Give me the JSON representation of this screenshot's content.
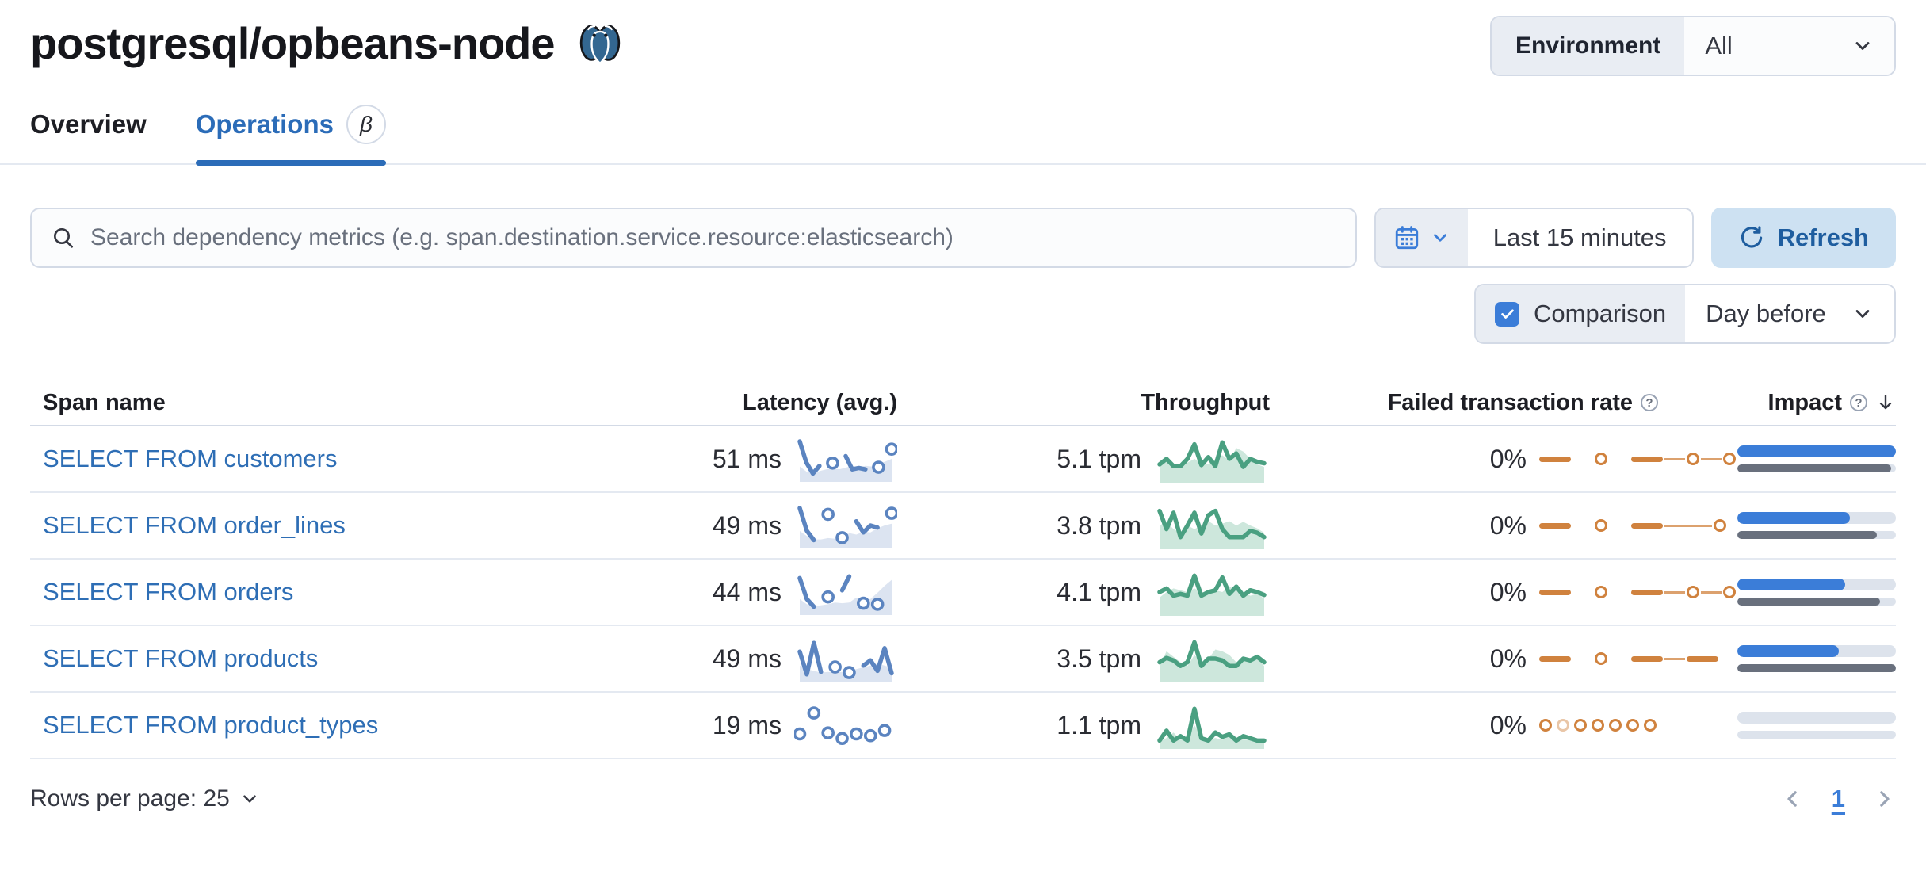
{
  "header": {
    "title": "postgresql/opbeans-node",
    "environment_label": "Environment",
    "environment_value": "All"
  },
  "tabs": [
    {
      "label": "Overview",
      "active": false
    },
    {
      "label": "Operations",
      "active": true,
      "badge": "β"
    }
  ],
  "controls": {
    "search_placeholder": "Search dependency metrics (e.g. span.destination.service.resource:elasticsearch)",
    "time_range": "Last 15 minutes",
    "refresh_label": "Refresh",
    "comparison_label": "Comparison",
    "comparison_checked": true,
    "comparison_value": "Day before"
  },
  "table": {
    "columns": {
      "span_name": "Span name",
      "latency": "Latency (avg.)",
      "throughput": "Throughput",
      "failed_rate": "Failed transaction rate",
      "impact": "Impact"
    },
    "rows": [
      {
        "span_name": "SELECT FROM customers",
        "latency": "51 ms",
        "throughput": "5.1 tpm",
        "failed_rate": "0%",
        "impact": 1.0,
        "impact_prev": 0.97,
        "latency_spark": {
          "current": [
            1.0,
            0.4,
            0.08,
            0.3,
            null,
            0.38,
            null,
            0.58,
            0.2,
            0.24,
            0.2,
            null,
            0.26,
            null,
            0.78
          ],
          "comparison": [
            0.28,
            0.14,
            0.08,
            0.15,
            0.2,
            0.24,
            0.2,
            0.25,
            0.3,
            0.26,
            0.3,
            0.28,
            0.36,
            0.42,
            0.5
          ]
        },
        "throughput_spark": {
          "current": [
            0.35,
            0.5,
            0.3,
            0.3,
            0.5,
            0.9,
            0.33,
            0.55,
            0.3,
            0.95,
            0.5,
            0.65,
            0.28,
            0.5,
            0.42,
            0.38
          ],
          "comparison": [
            0.3,
            0.42,
            0.35,
            0.3,
            0.4,
            0.5,
            0.4,
            0.35,
            0.5,
            0.6,
            0.45,
            0.8,
            0.7,
            0.5,
            0.35,
            0.28
          ]
        },
        "failed_pattern": [
          "dash",
          "gap",
          "dot",
          "gap",
          "dash",
          "link",
          "dot",
          "link",
          "dot"
        ]
      },
      {
        "span_name": "SELECT FROM order_lines",
        "latency": "49 ms",
        "throughput": "3.8 tpm",
        "failed_rate": "0%",
        "impact": 0.71,
        "impact_prev": 0.88,
        "latency_spark": {
          "current": [
            1.0,
            0.35,
            0.08,
            null,
            0.82,
            null,
            0.15,
            null,
            0.62,
            0.3,
            0.5,
            0.44,
            null,
            0.85
          ],
          "comparison": [
            0.34,
            0.2,
            0.1,
            0.1,
            0.14,
            0.12,
            0.1,
            0.28,
            0.24,
            0.32,
            0.3,
            0.42,
            0.5,
            0.55
          ]
        },
        "throughput_spark": {
          "current": [
            0.9,
            0.4,
            0.85,
            0.18,
            0.5,
            0.85,
            0.28,
            0.78,
            0.9,
            0.4,
            0.18,
            0.18,
            0.18,
            0.35,
            0.3,
            0.18
          ],
          "comparison": [
            0.5,
            0.6,
            0.4,
            0.3,
            0.5,
            0.4,
            0.5,
            0.62,
            0.5,
            0.55,
            0.62,
            0.5,
            0.6,
            0.5,
            0.42,
            0.3
          ]
        },
        "failed_pattern": [
          "dash",
          "gap",
          "dot",
          "gap",
          "dash",
          "longlink",
          "dot"
        ]
      },
      {
        "span_name": "SELECT FROM orders",
        "latency": "44 ms",
        "throughput": "4.1 tpm",
        "failed_rate": "0%",
        "impact": 0.68,
        "impact_prev": 0.9,
        "latency_spark": {
          "current": [
            0.9,
            0.3,
            0.08,
            null,
            0.36,
            null,
            0.55,
            0.95,
            null,
            0.18,
            null,
            0.15,
            null,
            null
          ],
          "comparison": [
            0.3,
            0.15,
            0.1,
            0.12,
            0.15,
            0.2,
            0.18,
            0.2,
            0.34,
            0.25,
            0.3,
            0.48,
            0.68,
            0.85
          ]
        },
        "throughput_spark": {
          "current": [
            0.5,
            0.6,
            0.4,
            0.45,
            0.4,
            0.95,
            0.4,
            0.5,
            0.55,
            0.9,
            0.45,
            0.65,
            0.4,
            0.55,
            0.5,
            0.42
          ],
          "comparison": [
            0.35,
            0.5,
            0.6,
            0.55,
            0.5,
            0.6,
            0.5,
            0.45,
            0.55,
            0.5,
            0.65,
            0.55,
            0.5,
            0.4,
            0.45,
            0.32
          ]
        },
        "failed_pattern": [
          "dash",
          "gap",
          "dot",
          "gap",
          "dash",
          "link",
          "dot",
          "link",
          "dot"
        ]
      },
      {
        "span_name": "SELECT FROM products",
        "latency": "49 ms",
        "throughput": "3.5 tpm",
        "failed_rate": "0%",
        "impact": 0.64,
        "impact_prev": 1.0,
        "latency_spark": {
          "current": [
            0.7,
            0.05,
            0.95,
            0.12,
            null,
            0.26,
            null,
            0.1,
            null,
            0.3,
            0.45,
            0.15,
            0.8,
            0.08
          ],
          "comparison": [
            0.3,
            0.2,
            0.15,
            0.1,
            0.12,
            0.1,
            0.12,
            0.15,
            0.2,
            0.25,
            0.3,
            0.35,
            0.3,
            0.24
          ]
        },
        "throughput_spark": {
          "current": [
            0.4,
            0.52,
            0.45,
            0.3,
            0.4,
            0.95,
            0.3,
            0.5,
            0.5,
            0.45,
            0.3,
            0.3,
            0.5,
            0.45,
            0.55,
            0.4
          ],
          "comparison": [
            0.3,
            0.7,
            0.55,
            0.4,
            0.3,
            0.6,
            0.4,
            0.5,
            0.75,
            0.7,
            0.6,
            0.4,
            0.5,
            0.45,
            0.5,
            0.3
          ]
        },
        "failed_pattern": [
          "dash",
          "gap",
          "dot",
          "gap",
          "dash",
          "link",
          "dash"
        ]
      },
      {
        "span_name": "SELECT FROM product_types",
        "latency": "19 ms",
        "throughput": "1.1 tpm",
        "failed_rate": "0%",
        "impact": 0.0,
        "impact_prev": 0.0,
        "latency_spark": {
          "current": [
            0.25,
            null,
            0.85,
            null,
            0.28,
            null,
            0.12,
            null,
            0.25,
            null,
            0.2,
            null,
            0.35,
            null
          ],
          "comparison": []
        },
        "throughput_spark": {
          "current": [
            0.08,
            0.35,
            0.08,
            0.2,
            0.08,
            0.95,
            0.14,
            0.08,
            0.3,
            0.18,
            0.25,
            0.08,
            0.2,
            0.14,
            0.08,
            0.08
          ],
          "comparison": [
            0.05,
            0.15,
            0.3,
            0.1,
            0.2,
            0.5,
            0.2,
            0.1,
            0.15,
            0.1,
            0.2,
            0.15,
            0.1,
            0.1,
            0.05,
            0.05
          ]
        },
        "failed_pattern": [
          "dot",
          "faintdot",
          "dot",
          "dot",
          "dot",
          "dot",
          "dot"
        ]
      }
    ]
  },
  "pagination": {
    "rows_per_page_label": "Rows per page: 25",
    "current_page": "1"
  },
  "colors": {
    "link_blue": "#2e6eb5",
    "tab_blue": "#2b6cb8",
    "control_blue": "#3b7dd8",
    "refresh_bg": "#cde1f2",
    "refresh_text": "#1e5d9f",
    "latency_line": "#5b84c0",
    "latency_area": "#dce4f1",
    "throughput_line": "#4aa081",
    "throughput_area": "#cde7dc",
    "failed_orange": "#d0823e",
    "impact_prev_gray": "#69707d",
    "bar_track": "#dde3ec"
  }
}
